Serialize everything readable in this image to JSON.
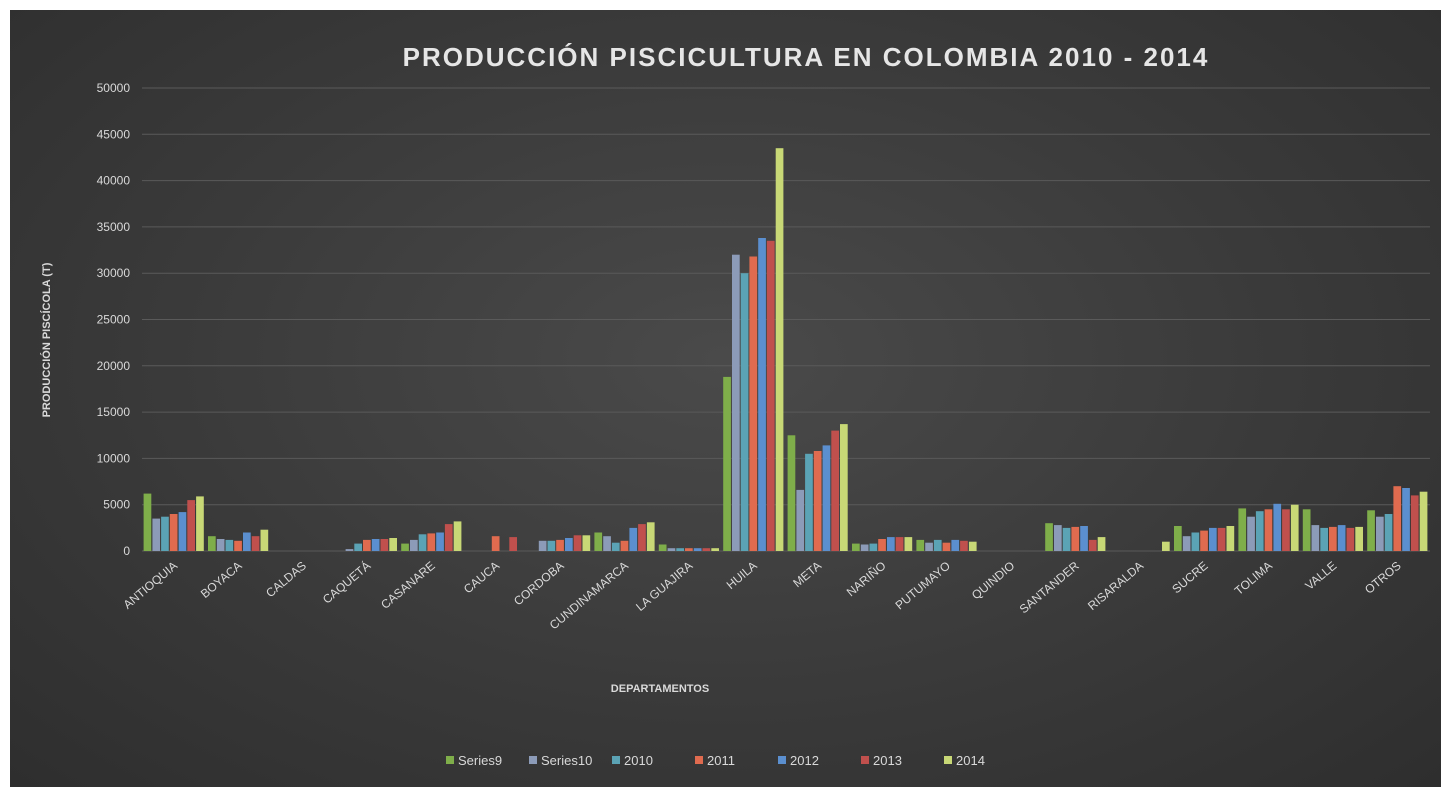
{
  "chart_data": {
    "type": "bar",
    "title": "PRODUCCIÓN  PISCICULTURA  EN COLOMBIA  2010 - 2014",
    "xlabel": "DEPARTAMENTOS",
    "ylabel": "PRODUCCIÓN PISCÍCOLA (T)",
    "ylim": [
      0,
      50000
    ],
    "yticks": [
      "0",
      "5000",
      "10000",
      "15000",
      "20000",
      "25000",
      "30000",
      "35000",
      "40000",
      "45000",
      "50000"
    ],
    "grid": true,
    "legend_position": "bottom",
    "categories": [
      "ANTIOQUIA",
      "BOYACA",
      "CALDAS",
      "CAQUETÁ",
      "CASANARE",
      "CAUCA",
      "CORDOBA",
      "CUNDINAMARCA",
      "LA GUAJIRA",
      "HUILA",
      "META",
      "NARIÑO",
      "PUTUMAYO",
      "QUINDIO",
      "SANTANDER",
      "RISARALDA",
      "SUCRE",
      "TOLIMA",
      "VALLE",
      "OTROS"
    ],
    "series": [
      {
        "name": "Series9",
        "color": "#7fae4a",
        "values": [
          6200,
          1600,
          0,
          0,
          800,
          0,
          0,
          2000,
          700,
          18800,
          12500,
          800,
          1200,
          0,
          3000,
          0,
          2700,
          4600,
          4500,
          4400
        ]
      },
      {
        "name": "Series10",
        "color": "#8c9bb8",
        "values": [
          3500,
          1300,
          0,
          200,
          1200,
          0,
          1100,
          1600,
          300,
          32000,
          6600,
          700,
          900,
          0,
          2800,
          0,
          1600,
          3700,
          2800,
          3700
        ]
      },
      {
        "name": "2010",
        "color": "#5ba3b5",
        "values": [
          3700,
          1200,
          0,
          800,
          1800,
          0,
          1100,
          900,
          300,
          30000,
          10500,
          800,
          1200,
          0,
          2500,
          0,
          2000,
          4300,
          2500,
          4000
        ]
      },
      {
        "name": "2011",
        "color": "#e06b4f",
        "values": [
          4000,
          1100,
          0,
          1200,
          1900,
          1600,
          1200,
          1100,
          300,
          31800,
          10800,
          1300,
          900,
          0,
          2600,
          0,
          2200,
          4500,
          2600,
          7000
        ]
      },
      {
        "name": "2012",
        "color": "#5b8fcf",
        "values": [
          4200,
          2000,
          0,
          1300,
          2000,
          0,
          1400,
          2500,
          300,
          33800,
          11400,
          1500,
          1200,
          0,
          2700,
          0,
          2500,
          5100,
          2800,
          6800
        ]
      },
      {
        "name": "2013",
        "color": "#c0504d",
        "values": [
          5500,
          1600,
          0,
          1300,
          2900,
          1500,
          1700,
          2900,
          300,
          33500,
          13000,
          1500,
          1100,
          0,
          1200,
          0,
          2500,
          4500,
          2500,
          6000
        ]
      },
      {
        "name": "2014",
        "color": "#c8d876",
        "values": [
          5900,
          2300,
          0,
          1400,
          3200,
          0,
          1700,
          3100,
          300,
          43500,
          13700,
          1500,
          1000,
          0,
          1500,
          1000,
          2700,
          5000,
          2600,
          6400
        ]
      }
    ]
  }
}
